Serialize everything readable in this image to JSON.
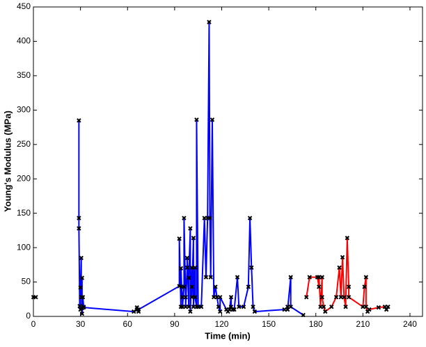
{
  "chart_data": {
    "type": "line",
    "x_label": "Time (min)",
    "y_label": "Young's Modulus (MPa)",
    "xlim": [
      0,
      248
    ],
    "ylim": [
      0,
      450
    ],
    "xticks": [
      0,
      30,
      60,
      90,
      120,
      150,
      180,
      210,
      240
    ],
    "yticks": [
      0,
      50,
      100,
      150,
      200,
      250,
      300,
      350,
      400,
      450
    ],
    "grid": false,
    "marker_color": "#000000",
    "series": [
      {
        "color": "#0000ff",
        "x": [
          0,
          1.5,
          null,
          29,
          29,
          29,
          29.5,
          30,
          30,
          30.5,
          30.5,
          31,
          31,
          31,
          31.5,
          32,
          32,
          64,
          66,
          66,
          67,
          67,
          93,
          93,
          94,
          94,
          94.5,
          95,
          95,
          96,
          96,
          97,
          97,
          98,
          98,
          99,
          99,
          100,
          100,
          101,
          101,
          101,
          102,
          102,
          103,
          103,
          104,
          104,
          105,
          107,
          109,
          110,
          111,
          112,
          112.5,
          113,
          114,
          115,
          116,
          117,
          118,
          119,
          119,
          123,
          124,
          125,
          126,
          126,
          127,
          128,
          130,
          131,
          134,
          137,
          138,
          139,
          140,
          141,
          160,
          162,
          162,
          164,
          164,
          172
        ],
        "values": [
          28,
          28,
          null,
          285,
          143,
          128,
          15,
          10,
          42,
          85,
          28,
          56,
          12,
          4,
          28,
          14,
          13,
          7,
          10,
          13,
          7,
          10,
          44,
          113,
          14,
          70,
          43,
          28,
          14,
          43,
          143,
          28,
          14,
          71,
          85,
          14,
          56,
          128,
          7,
          71,
          43,
          28,
          114,
          14,
          71,
          28,
          14,
          286,
          14,
          14,
          143,
          57,
          143,
          428,
          143,
          57,
          286,
          28,
          43,
          28,
          14,
          7,
          28,
          10,
          7,
          10,
          28,
          14,
          10,
          10,
          57,
          14,
          14,
          43,
          143,
          71,
          14,
          7,
          10,
          14,
          10,
          57,
          14,
          2
        ]
      },
      {
        "color": "#ff0000",
        "x": [
          174,
          176,
          181,
          182,
          182,
          183,
          184,
          184,
          185,
          186,
          190,
          193,
          195,
          196,
          197,
          198,
          199,
          200,
          201,
          201,
          210,
          211,
          212,
          212,
          213,
          214,
          220,
          224,
          225,
          226
        ],
        "values": [
          28,
          57,
          57,
          43,
          57,
          14,
          57,
          28,
          14,
          7,
          14,
          28,
          71,
          28,
          86,
          28,
          14,
          114,
          43,
          28,
          14,
          43,
          57,
          14,
          7,
          10,
          13,
          14,
          10,
          14
        ]
      }
    ]
  }
}
